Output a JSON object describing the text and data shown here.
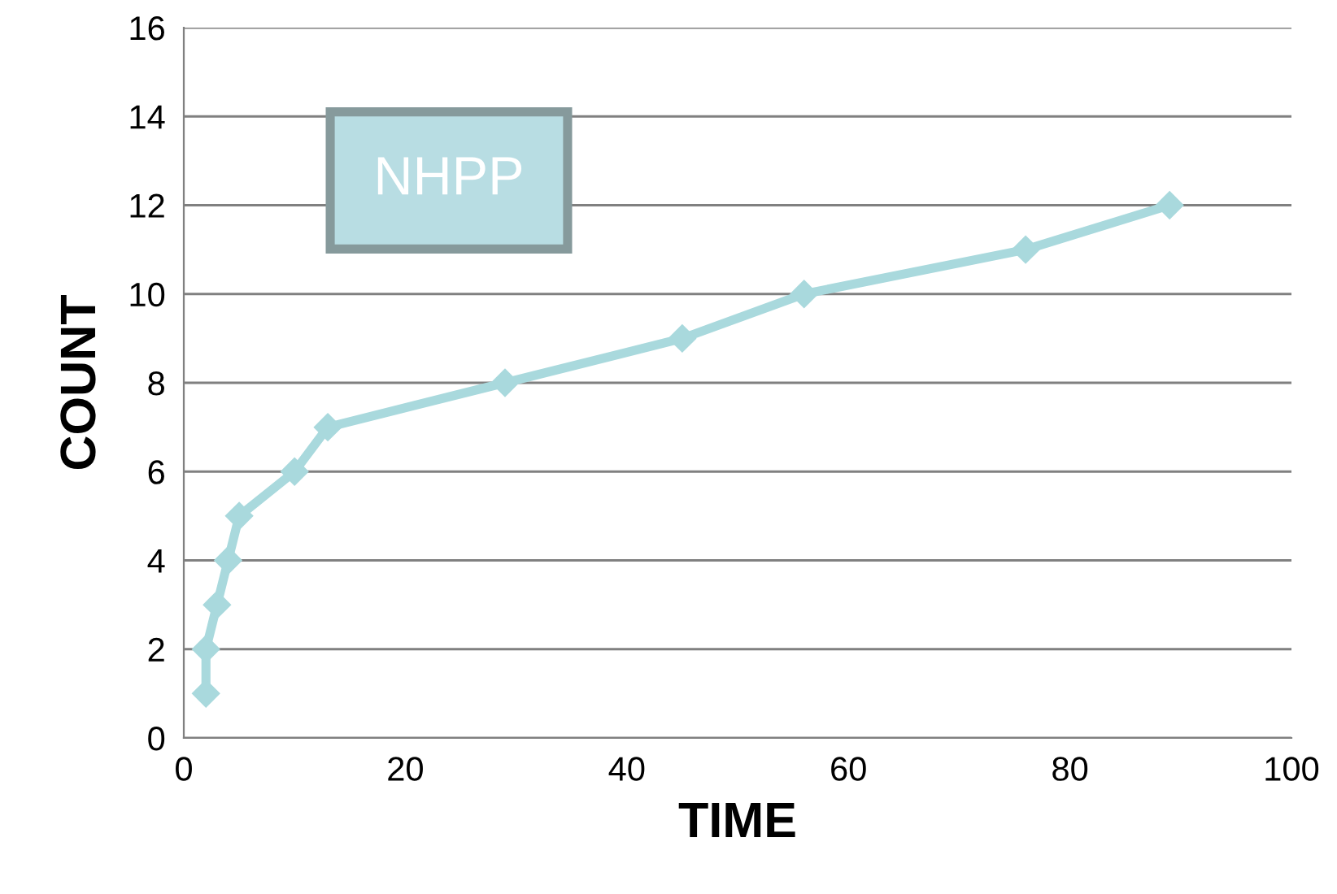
{
  "chart_data": {
    "type": "line",
    "title": "NHPP",
    "xlabel": "TIME",
    "ylabel": "COUNT",
    "series": [
      {
        "color": "#a9d9dd",
        "x": [
          2,
          2,
          3,
          4,
          5,
          10,
          13,
          29,
          45,
          56,
          76,
          89
        ],
        "values": [
          1,
          2,
          3,
          4,
          5,
          6,
          7,
          8,
          9,
          10,
          11,
          12
        ]
      }
    ],
    "xlim": [
      0,
      100
    ],
    "xticks": [
      0,
      20,
      40,
      60,
      80,
      100
    ],
    "ylim": [
      0,
      16
    ],
    "yticks": [
      0,
      2,
      4,
      6,
      8,
      10,
      12,
      14,
      16
    ],
    "grid": "y",
    "marker": "diamond",
    "line_style": "solid",
    "legend": false
  }
}
